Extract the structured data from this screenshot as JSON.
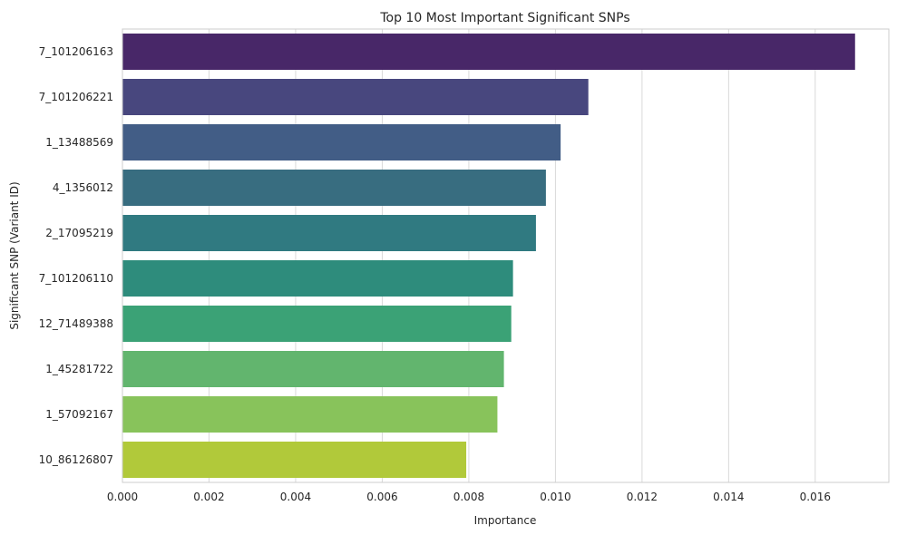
{
  "chart_data": {
    "type": "bar",
    "orientation": "horizontal",
    "title": "Top 10 Most Important Significant SNPs",
    "xlabel": "Importance",
    "ylabel": "Significant SNP (Variant ID)",
    "xlim": [
      0,
      0.0177
    ],
    "xticks": [
      0.0,
      0.002,
      0.004,
      0.006,
      0.008,
      0.01,
      0.012,
      0.014,
      0.016
    ],
    "xtick_labels": [
      "0.000",
      "0.002",
      "0.004",
      "0.006",
      "0.008",
      "0.010",
      "0.012",
      "0.014",
      "0.016"
    ],
    "grid": "vertical",
    "categories": [
      "7_101206163",
      "7_101206221",
      "1_13488569",
      "4_1356012",
      "2_17095219",
      "7_101206110",
      "12_71489388",
      "1_45281722",
      "1_57092167",
      "10_86126807"
    ],
    "values": [
      0.01692,
      0.01076,
      0.01012,
      0.00978,
      0.00955,
      0.00902,
      0.00898,
      0.00881,
      0.00866,
      0.00794
    ],
    "colors": [
      "#482768",
      "#48477e",
      "#425d86",
      "#386d80",
      "#307a81",
      "#2e8c7c",
      "#3ba276",
      "#62b56e",
      "#88c35b",
      "#b1c93a"
    ]
  }
}
